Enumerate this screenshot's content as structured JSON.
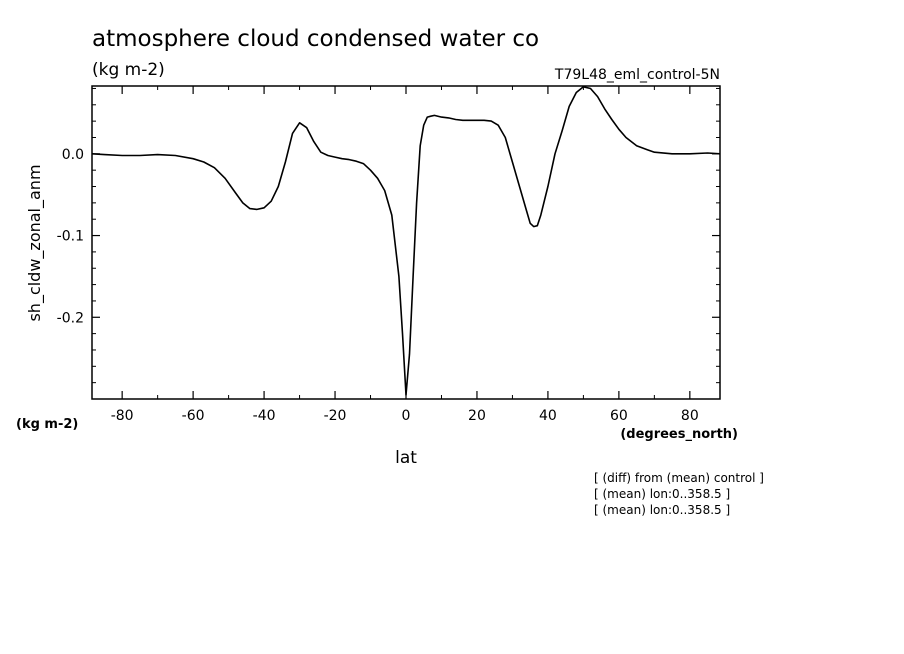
{
  "chart_data": {
    "type": "line",
    "title": "atmosphere cloud condensed water co",
    "units": "(kg m-2)",
    "run_label": "T79L48_eml_control-5N",
    "ylabel": "sh_cldw_zonal_anm",
    "y_units": "(kg m-2)",
    "xlabel": "lat",
    "x_units": "(degrees_north)",
    "xlim": [
      -88.5,
      88.5
    ],
    "ylim": [
      -0.3,
      0.083
    ],
    "x_ticks": [
      -80,
      -60,
      -40,
      -20,
      0,
      20,
      40,
      60,
      80
    ],
    "x_tick_labels": [
      "-80",
      "-60",
      "-40",
      "-20",
      "0",
      "20",
      "40",
      "60",
      "80"
    ],
    "y_ticks": [
      0.0,
      -0.1,
      -0.2
    ],
    "y_tick_labels": [
      "0.0",
      "-0.1",
      "-0.2"
    ],
    "notes": [
      "[ (diff) from (mean) control ]",
      "[ (mean) lon:0..358.5 ]",
      "[ (mean) lon:0..358.5 ]"
    ],
    "series": [
      {
        "x": [
          -88.5,
          -85,
          -80,
          -75,
          -70,
          -65,
          -60,
          -57,
          -54,
          -51,
          -48,
          -46,
          -44,
          -42,
          -40,
          -38,
          -36,
          -34,
          -32,
          -30,
          -28,
          -26,
          -24,
          -22,
          -20,
          -18,
          -16,
          -14,
          -12,
          -10,
          -8,
          -6,
          -4,
          -2,
          -1,
          0,
          1,
          2,
          3,
          4,
          5,
          6,
          7,
          8,
          10,
          12,
          14,
          16,
          18,
          20,
          22,
          24,
          26,
          28,
          30,
          32,
          34,
          35,
          36,
          37,
          38,
          40,
          42,
          44,
          46,
          48,
          50,
          52,
          54,
          56,
          58,
          60,
          62,
          65,
          68,
          70,
          75,
          80,
          85,
          88.5
        ],
        "y": [
          0.0,
          -0.001,
          -0.002,
          -0.002,
          -0.001,
          -0.002,
          -0.006,
          -0.01,
          -0.017,
          -0.03,
          -0.048,
          -0.06,
          -0.067,
          -0.068,
          -0.066,
          -0.058,
          -0.04,
          -0.01,
          0.025,
          0.038,
          0.032,
          0.015,
          0.002,
          -0.002,
          -0.004,
          -0.006,
          -0.007,
          -0.009,
          -0.012,
          -0.02,
          -0.03,
          -0.045,
          -0.075,
          -0.15,
          -0.22,
          -0.295,
          -0.245,
          -0.15,
          -0.06,
          0.01,
          0.035,
          0.045,
          0.046,
          0.047,
          0.045,
          0.044,
          0.042,
          0.041,
          0.041,
          0.041,
          0.041,
          0.04,
          0.035,
          0.02,
          -0.01,
          -0.04,
          -0.07,
          -0.085,
          -0.089,
          -0.088,
          -0.075,
          -0.04,
          0.0,
          0.028,
          0.058,
          0.075,
          0.082,
          0.08,
          0.07,
          0.055,
          0.042,
          0.03,
          0.02,
          0.01,
          0.005,
          0.002,
          0.0,
          0.0,
          0.001,
          0.0
        ]
      }
    ]
  }
}
